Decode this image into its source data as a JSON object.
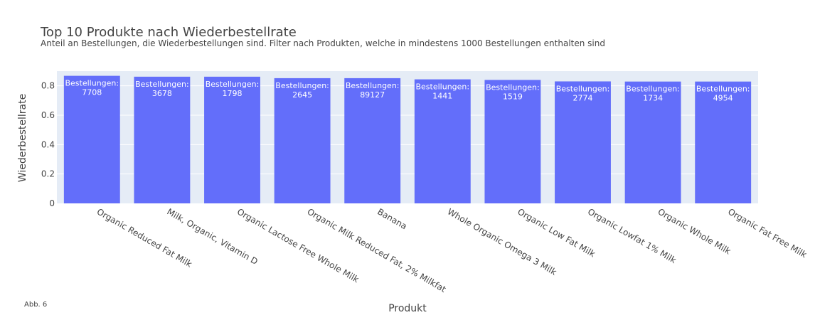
{
  "figure_note": "Abb. 6",
  "chart_data": {
    "type": "bar",
    "title": "Top 10 Produkte nach Wiederbestellrate",
    "subtitle": "Anteil an Bestellungen, die Wiederbestellungen sind. Filter nach Produkten, welche in mindestens 1000 Bestellungen enthalten sind",
    "xlabel": "Produkt",
    "ylabel": "Wiederbestellrate",
    "ylim": [
      0,
      0.9
    ],
    "yticks": [
      0,
      0.2,
      0.4,
      0.6,
      0.8
    ],
    "ytick_labels": [
      "0",
      "0.2",
      "0.4",
      "0.6",
      "0.8"
    ],
    "grid": true,
    "color": "#636efa",
    "plot_bg": "#e5ecf6",
    "label_prefix": "Bestellungen:",
    "categories": [
      "Organic Reduced Fat Milk",
      "Milk, Organic, Vitamin D",
      "Organic Lactose Free Whole Milk",
      "Organic Milk Reduced Fat, 2% Milkfat",
      "Banana",
      "Whole Organic Omega 3 Milk",
      "Organic Low Fat Milk",
      "Organic Lowfat 1% Milk",
      "Organic  Whole Milk",
      "Organic Fat Free Milk"
    ],
    "values": [
      0.868,
      0.862,
      0.862,
      0.852,
      0.852,
      0.844,
      0.84,
      0.83,
      0.829,
      0.829
    ],
    "orders": [
      "7708",
      "3678",
      "1798",
      "2645",
      "89127",
      "1441",
      "1519",
      "2774",
      "1734",
      "4954"
    ]
  }
}
